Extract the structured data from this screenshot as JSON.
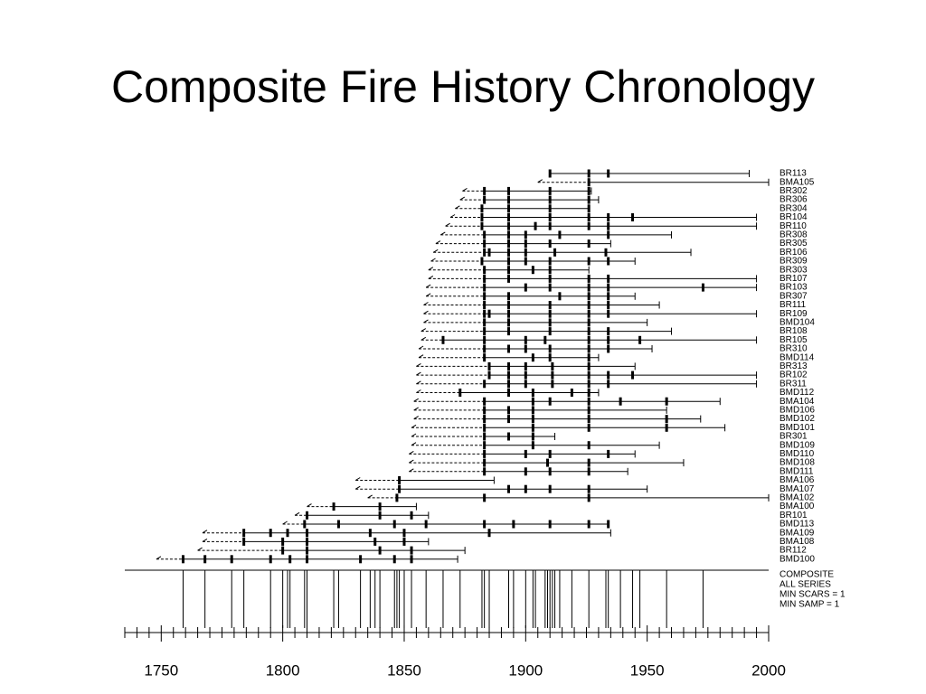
{
  "chart_data": {
    "type": "fire-history",
    "title": "Composite Fire History Chronology",
    "xlim": [
      1735,
      2000
    ],
    "xticks": [
      1750,
      1800,
      1850,
      1900,
      1950,
      2000
    ],
    "minor_xticks": [
      1735,
      1740,
      1745,
      1755,
      1760,
      1765,
      1770,
      1775,
      1780,
      1785,
      1790,
      1795,
      1805,
      1810,
      1815,
      1820,
      1825,
      1830,
      1835,
      1840,
      1845,
      1855,
      1860,
      1865,
      1870,
      1875,
      1880,
      1885,
      1890,
      1895,
      1905,
      1910,
      1915,
      1920,
      1925,
      1930,
      1935,
      1940,
      1945,
      1955,
      1960,
      1965,
      1970,
      1975,
      1980,
      1985,
      1990,
      1995
    ],
    "composite_labels": [
      "COMPOSITE",
      "ALL SERIES",
      "MIN SCARS = 1",
      "MIN SAMP = 1"
    ],
    "series": [
      {
        "name": "BR113",
        "inner": 1910,
        "end": 1992,
        "scars": [
          1910,
          1926,
          1934
        ]
      },
      {
        "name": "BMA105",
        "inner": 1905,
        "end": 2000,
        "scars": [
          1926
        ]
      },
      {
        "name": "BR302",
        "inner": 1874,
        "end": 1927,
        "scars": [
          1883,
          1893,
          1910,
          1926
        ]
      },
      {
        "name": "BR306",
        "inner": 1873,
        "end": 1930,
        "scars": [
          1883,
          1893,
          1910,
          1926
        ]
      },
      {
        "name": "BR304",
        "inner": 1871,
        "end": 1926,
        "scars": [
          1882,
          1893,
          1910,
          1926
        ]
      },
      {
        "name": "BR104",
        "inner": 1869,
        "end": 1995,
        "scars": [
          1882,
          1893,
          1910,
          1926,
          1934,
          1944
        ]
      },
      {
        "name": "BR110",
        "inner": 1867,
        "end": 1995,
        "scars": [
          1882,
          1893,
          1904,
          1910,
          1926,
          1934
        ]
      },
      {
        "name": "BR308",
        "inner": 1865,
        "end": 1960,
        "scars": [
          1883,
          1893,
          1900,
          1914,
          1934
        ]
      },
      {
        "name": "BR305",
        "inner": 1863,
        "end": 1935,
        "scars": [
          1883,
          1893,
          1900,
          1910,
          1926
        ]
      },
      {
        "name": "BR106",
        "inner": 1862,
        "end": 1968,
        "scars": [
          1883,
          1885,
          1893,
          1900,
          1912,
          1933
        ]
      },
      {
        "name": "BR309",
        "inner": 1861,
        "end": 1945,
        "scars": [
          1882,
          1893,
          1900,
          1910,
          1926,
          1934
        ]
      },
      {
        "name": "BR303",
        "inner": 1860,
        "end": 1926,
        "scars": [
          1883,
          1893,
          1903,
          1910
        ]
      },
      {
        "name": "BR107",
        "inner": 1860,
        "end": 1995,
        "scars": [
          1883,
          1893,
          1910,
          1926,
          1934
        ]
      },
      {
        "name": "BR103",
        "inner": 1859,
        "end": 1995,
        "scars": [
          1883,
          1900,
          1910,
          1926,
          1934,
          1973
        ]
      },
      {
        "name": "BR307",
        "inner": 1859,
        "end": 1945,
        "scars": [
          1883,
          1893,
          1914,
          1926,
          1934
        ]
      },
      {
        "name": "BR111",
        "inner": 1858,
        "end": 1955,
        "scars": [
          1883,
          1893,
          1910,
          1926,
          1934
        ]
      },
      {
        "name": "BR109",
        "inner": 1858,
        "end": 1995,
        "scars": [
          1883,
          1885,
          1893,
          1910,
          1926,
          1934
        ]
      },
      {
        "name": "BMD104",
        "inner": 1858,
        "end": 1950,
        "scars": [
          1883,
          1893,
          1910,
          1926
        ]
      },
      {
        "name": "BR108",
        "inner": 1857,
        "end": 1960,
        "scars": [
          1883,
          1893,
          1910,
          1926,
          1934
        ]
      },
      {
        "name": "BR105",
        "inner": 1857,
        "end": 1995,
        "scars": [
          1866,
          1883,
          1900,
          1908,
          1926,
          1934,
          1947
        ]
      },
      {
        "name": "BR310",
        "inner": 1856,
        "end": 1952,
        "scars": [
          1883,
          1893,
          1900,
          1910,
          1926,
          1934
        ]
      },
      {
        "name": "BMD114",
        "inner": 1856,
        "end": 1930,
        "scars": [
          1883,
          1903,
          1910,
          1926
        ]
      },
      {
        "name": "BR313",
        "inner": 1855,
        "end": 1945,
        "scars": [
          1885,
          1893,
          1900,
          1911,
          1926
        ]
      },
      {
        "name": "BR102",
        "inner": 1855,
        "end": 1995,
        "scars": [
          1885,
          1893,
          1900,
          1911,
          1926,
          1934,
          1944
        ]
      },
      {
        "name": "BR311",
        "inner": 1855,
        "end": 1995,
        "scars": [
          1883,
          1893,
          1900,
          1911,
          1926,
          1934
        ]
      },
      {
        "name": "BMD112",
        "inner": 1855,
        "end": 1930,
        "scars": [
          1873,
          1893,
          1903,
          1919,
          1926
        ]
      },
      {
        "name": "BMA104",
        "inner": 1854,
        "end": 1980,
        "scars": [
          1883,
          1903,
          1910,
          1926,
          1939,
          1958
        ]
      },
      {
        "name": "BMD106",
        "inner": 1854,
        "end": 1958,
        "scars": [
          1883,
          1893,
          1903,
          1926
        ]
      },
      {
        "name": "BMD102",
        "inner": 1854,
        "end": 1972,
        "scars": [
          1883,
          1893,
          1903,
          1926,
          1958
        ]
      },
      {
        "name": "BMD101",
        "inner": 1853,
        "end": 1982,
        "scars": [
          1883,
          1903,
          1926,
          1958
        ]
      },
      {
        "name": "BR301",
        "inner": 1853,
        "end": 1912,
        "scars": [
          1883,
          1893,
          1903
        ]
      },
      {
        "name": "BMD109",
        "inner": 1853,
        "end": 1955,
        "scars": [
          1883,
          1903,
          1926
        ]
      },
      {
        "name": "BMD110",
        "inner": 1852,
        "end": 1945,
        "scars": [
          1883,
          1900,
          1910,
          1934
        ]
      },
      {
        "name": "BMD108",
        "inner": 1852,
        "end": 1965,
        "scars": [
          1883,
          1909,
          1926
        ]
      },
      {
        "name": "BMD111",
        "inner": 1852,
        "end": 1942,
        "scars": [
          1883,
          1900,
          1910,
          1926
        ]
      },
      {
        "name": "BMA106",
        "inner": 1830,
        "end": 1887,
        "scars": [
          1848
        ]
      },
      {
        "name": "BMA107",
        "inner": 1830,
        "end": 1950,
        "scars": [
          1848,
          1893,
          1900,
          1910,
          1926
        ]
      },
      {
        "name": "BMA102",
        "inner": 1835,
        "end": 2000,
        "scars": [
          1847,
          1883,
          1926
        ]
      },
      {
        "name": "BMA100",
        "inner": 1810,
        "end": 1855,
        "scars": [
          1821,
          1840
        ]
      },
      {
        "name": "BR101",
        "inner": 1805,
        "end": 1860,
        "scars": [
          1810,
          1840,
          1853
        ]
      },
      {
        "name": "BMD113",
        "inner": 1800,
        "end": 1934,
        "scars": [
          1809,
          1823,
          1846,
          1859,
          1883,
          1895,
          1910,
          1926,
          1934
        ]
      },
      {
        "name": "BMA109",
        "inner": 1767,
        "end": 1935,
        "scars": [
          1784,
          1795,
          1802,
          1810,
          1836,
          1850,
          1885
        ]
      },
      {
        "name": "BMA108",
        "inner": 1767,
        "end": 1860,
        "scars": [
          1784,
          1800,
          1810,
          1838,
          1850
        ]
      },
      {
        "name": "BR112",
        "inner": 1765,
        "end": 1875,
        "scars": [
          1800,
          1810,
          1840,
          1853
        ]
      },
      {
        "name": "BMD100",
        "inner": 1748,
        "end": 1872,
        "scars": [
          1759,
          1768,
          1779,
          1795,
          1803,
          1810,
          1832,
          1846,
          1853
        ]
      }
    ]
  }
}
